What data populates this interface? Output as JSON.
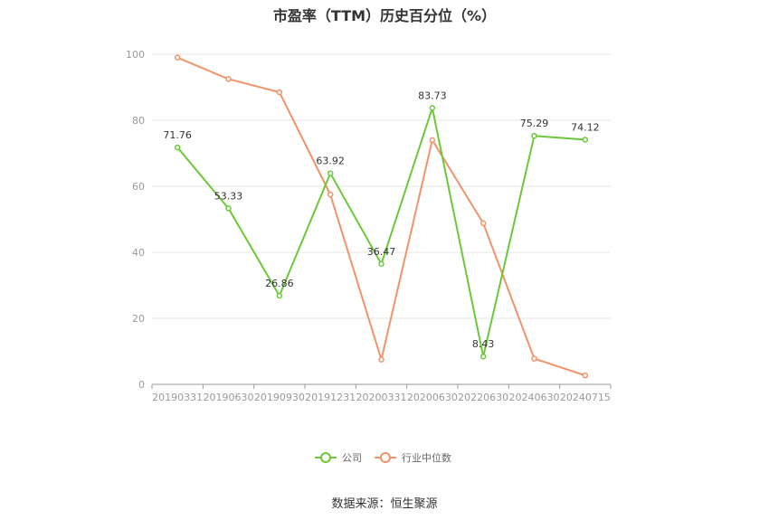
{
  "title": "市盈率（TTM）历史百分位（%）",
  "source": "数据来源：恒生聚源",
  "colors": {
    "company": "#6cc83a",
    "industry": "#f0936b",
    "grid": "#e6e6e6",
    "axis": "#999999"
  },
  "chart_data": {
    "type": "line",
    "title": "市盈率（TTM）历史百分位（%）",
    "x": [
      "20190331",
      "20190630",
      "20190930",
      "20191231",
      "20200331",
      "20200630",
      "20220630",
      "20240630",
      "20240715"
    ],
    "ylim": [
      0,
      100
    ],
    "yticks": [
      0,
      20,
      40,
      60,
      80,
      100
    ],
    "grid": true,
    "legend_position": "bottom-center",
    "series": [
      {
        "name": "公司",
        "values": [
          71.76,
          53.33,
          26.86,
          63.92,
          36.47,
          83.73,
          8.43,
          75.29,
          74.12
        ],
        "labels": [
          "71.76",
          "53.33",
          "26.86",
          "63.92",
          "36.47",
          "83.73",
          "8.43",
          "75.29",
          "74.12"
        ]
      },
      {
        "name": "行业中位数",
        "values": [
          99.0,
          92.5,
          88.5,
          57.5,
          7.5,
          74.0,
          48.8,
          7.8,
          2.7
        ]
      }
    ]
  }
}
